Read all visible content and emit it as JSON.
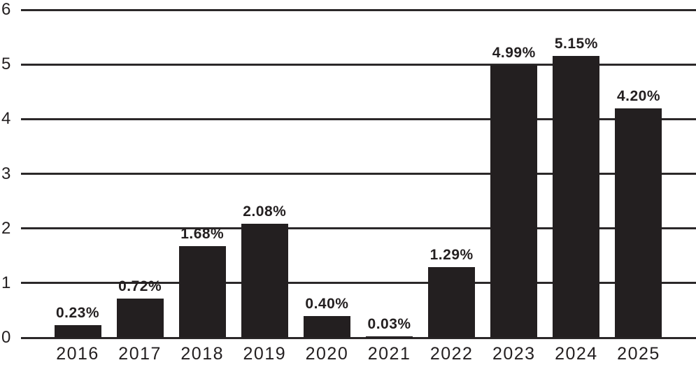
{
  "chart_data": {
    "type": "bar",
    "title": "",
    "xlabel": "",
    "ylabel": "",
    "categories": [
      "2016",
      "2017",
      "2018",
      "2019",
      "2020",
      "2021",
      "2022",
      "2023",
      "2024",
      "2025"
    ],
    "values": [
      0.23,
      0.72,
      1.68,
      2.08,
      0.4,
      0.03,
      1.29,
      4.99,
      5.15,
      4.2
    ],
    "value_labels": [
      "0.23%",
      "0.72%",
      "1.68%",
      "2.08%",
      "0.40%",
      "0.03%",
      "1.29%",
      "4.99%",
      "5.15%",
      "4.20%"
    ],
    "ylim": [
      0,
      6
    ],
    "yticks": [
      "0",
      "1",
      "2",
      "3",
      "4",
      "5",
      "6"
    ],
    "grid": true,
    "legend": false,
    "legend_position": "none",
    "bar_color": "#231f20",
    "gridline_color": "#2b2829",
    "text_color": "#231f20",
    "background_color": "#ffffff"
  }
}
